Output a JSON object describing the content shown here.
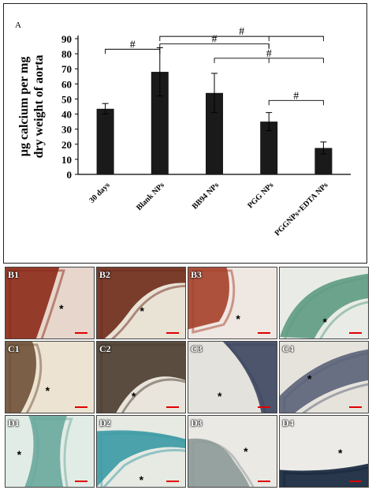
{
  "panel_a": {
    "letter": "A",
    "chart_data": {
      "type": "bar",
      "categories": [
        "30 days",
        "Blank NPs",
        "BB94 NPs",
        "PGG NPs",
        "PGGNPs+EDTA NPs"
      ],
      "values": [
        43.5,
        68,
        54,
        35,
        17.5
      ],
      "errors": [
        3.5,
        16,
        13,
        6,
        4
      ],
      "title": "",
      "xlabel": "",
      "ylabel": "µg calcium per mg dry weight of aorta",
      "ylim": [
        0,
        90
      ],
      "yticks": [
        0,
        10,
        20,
        30,
        40,
        50,
        60,
        70,
        80,
        90
      ],
      "grid": false,
      "bar_color": "#1a1a1a",
      "significance": [
        {
          "from": 0,
          "to": 1,
          "label": "#"
        },
        {
          "from": 1,
          "to": 3,
          "label": "#"
        },
        {
          "from": 1,
          "to": 4,
          "label": "#"
        },
        {
          "from": 2,
          "to": 4,
          "label": "#"
        },
        {
          "from": 3,
          "to": 4,
          "label": "#"
        }
      ]
    }
  },
  "micrographs": [
    {
      "label": "B1",
      "stain": "red-stain",
      "base": "#e7d6cc",
      "tissue": "#8c2a18",
      "star": "*"
    },
    {
      "label": "B2",
      "stain": "red-stain",
      "base": "#e9e3d6",
      "tissue": "#6e2a1a",
      "star": "*"
    },
    {
      "label": "B3",
      "stain": "red-stain",
      "base": "#efe7e2",
      "tissue": "#a5402a",
      "star": "*"
    },
    {
      "label": "",
      "stain": "green-stain",
      "base": "#e9ece6",
      "tissue": "#5e9b82",
      "star": "*"
    },
    {
      "label": "C1",
      "stain": "brown-stain",
      "base": "#ede3d2",
      "tissue": "#6e5036",
      "star": "*"
    },
    {
      "label": "C2",
      "stain": "brown-stain",
      "base": "#e9e5dc",
      "tissue": "#4a3c2d",
      "star": "*"
    },
    {
      "label": "C3",
      "stain": "blue-stain",
      "base": "#e4e2dc",
      "tissue": "#3c4660",
      "star": "*"
    },
    {
      "label": "C4",
      "stain": "blue-stain",
      "base": "#e6e3dc",
      "tissue": "#5a6278",
      "star": "*"
    },
    {
      "label": "D1",
      "stain": "teal-stain",
      "base": "#e2ece6",
      "tissue": "#6aa89c",
      "star": "*"
    },
    {
      "label": "D2",
      "stain": "teal-stain",
      "base": "#e6eae2",
      "tissue": "#3b9aa5",
      "star": "*"
    },
    {
      "label": "D3",
      "stain": "grey-stain",
      "base": "#ebe9e4",
      "tissue": "#8d9a98",
      "star": "*"
    },
    {
      "label": "D4",
      "stain": "navy-stain",
      "base": "#ecebe8",
      "tissue": "#13243a",
      "star": "*"
    }
  ],
  "scale_bar_color": "#e00000"
}
